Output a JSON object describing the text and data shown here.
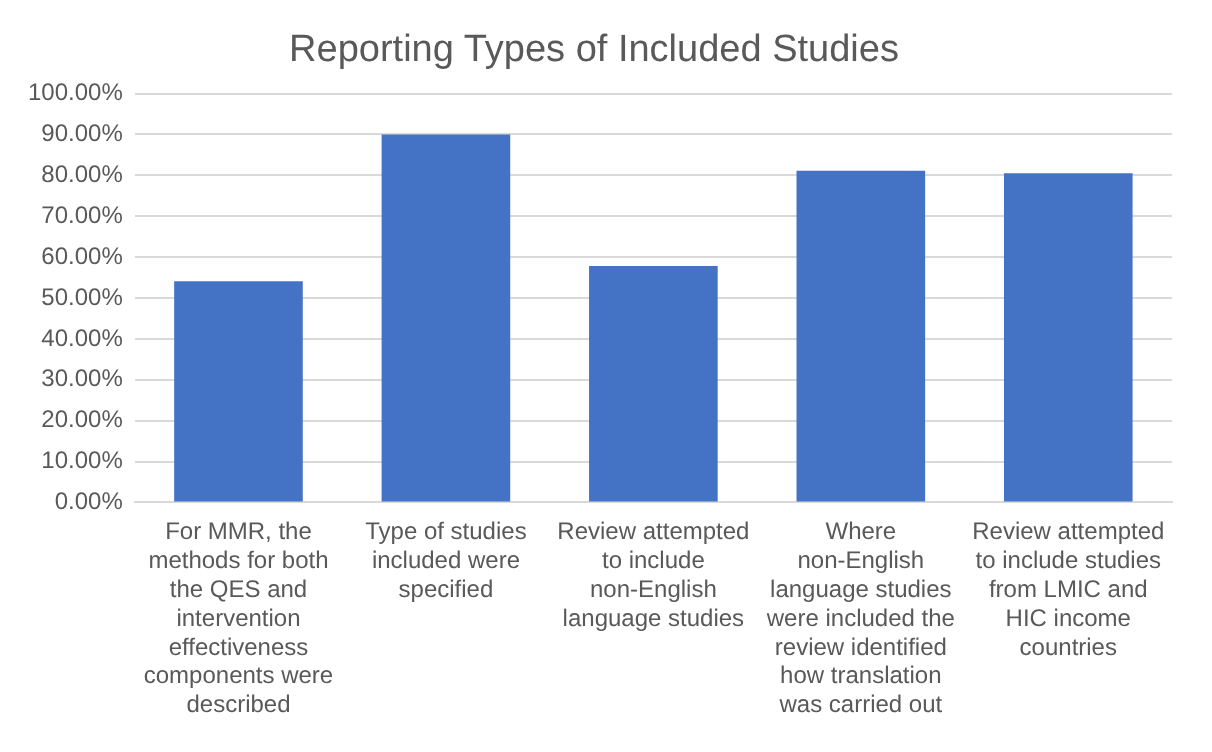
{
  "chart_data": {
    "type": "bar",
    "title": "Reporting Types of Included Studies",
    "categories": [
      "For MMR, the methods for both the QES and intervention effectiveness components were described",
      "Type of studies included were specified",
      "Review attempted to include non-English language studies",
      "Where non-English language studies were included the review identified how translation was carried out",
      "Review attempted to include studies from LMIC and HIC income countries"
    ],
    "values": [
      54.1,
      90,
      57.8,
      81.1,
      80.5
    ],
    "color": "#4472c4",
    "ylim": [
      0,
      100
    ],
    "yticks": [
      {
        "value": 0,
        "label": "0.00%"
      },
      {
        "value": 10,
        "label": "10.00%"
      },
      {
        "value": 20,
        "label": "20.00%"
      },
      {
        "value": 30,
        "label": "30.00%"
      },
      {
        "value": 40,
        "label": "40.00%"
      },
      {
        "value": 50,
        "label": "50.00%"
      },
      {
        "value": 60,
        "label": "60.00%"
      },
      {
        "value": 70,
        "label": "70.00%"
      },
      {
        "value": 80,
        "label": "80.00%"
      },
      {
        "value": 90,
        "label": "90.00%"
      },
      {
        "value": 100,
        "label": "100.00%"
      }
    ],
    "grid": "y"
  }
}
